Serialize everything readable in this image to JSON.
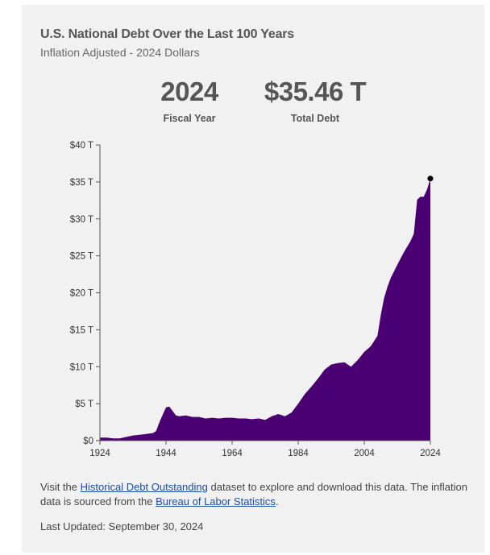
{
  "header": {
    "title": "U.S. National Debt Over the Last 100 Years",
    "subtitle": "Inflation Adjusted - 2024 Dollars"
  },
  "kpis": {
    "year_value": "2024",
    "year_label": "Fiscal Year",
    "debt_value": "$35.46 T",
    "debt_label": "Total Debt"
  },
  "footer": {
    "note_prefix": "Visit the ",
    "link_dataset": "Historical Debt Outstanding",
    "note_middle": " dataset to explore and download this data. The inflation data is sourced from the ",
    "link_bls": "Bureau of Labor Statistics",
    "note_suffix": ".",
    "updated": "Last Updated: September 30, 2024"
  },
  "colors": {
    "area": "#4a0072",
    "marker": "#000000",
    "axis": "#555555"
  },
  "chart_data": {
    "type": "area",
    "title": "U.S. National Debt Over the Last 100 Years",
    "subtitle": "Inflation Adjusted - 2024 Dollars",
    "xlabel": "",
    "ylabel": "",
    "xlim": [
      1924,
      2024
    ],
    "ylim": [
      0,
      40
    ],
    "x_ticks": [
      "1924",
      "1944",
      "1964",
      "1984",
      "2004",
      "2024"
    ],
    "y_ticks": [
      "$0",
      "$5 T",
      "$10 T",
      "$15 T",
      "$20 T",
      "$25 T",
      "$30 T",
      "$35 T",
      "$40 T"
    ],
    "units": "trillions of 2024 dollars",
    "grid": false,
    "highlight": {
      "x": 2024,
      "y": 35.46
    },
    "x": [
      1924,
      1926,
      1928,
      1930,
      1932,
      1934,
      1936,
      1938,
      1940,
      1941,
      1942,
      1943,
      1944,
      1945,
      1946,
      1947,
      1948,
      1950,
      1952,
      1954,
      1956,
      1958,
      1960,
      1962,
      1964,
      1966,
      1968,
      1970,
      1972,
      1974,
      1976,
      1978,
      1980,
      1982,
      1984,
      1986,
      1988,
      1990,
      1992,
      1994,
      1996,
      1998,
      2000,
      2002,
      2004,
      2006,
      2008,
      2009,
      2010,
      2011,
      2012,
      2014,
      2016,
      2018,
      2019,
      2020,
      2021,
      2022,
      2023,
      2024
    ],
    "values": [
      0.4,
      0.4,
      0.3,
      0.3,
      0.5,
      0.7,
      0.8,
      0.9,
      1.0,
      1.3,
      2.5,
      3.5,
      4.5,
      4.6,
      4.0,
      3.4,
      3.3,
      3.4,
      3.2,
      3.2,
      3.0,
      3.1,
      3.0,
      3.1,
      3.1,
      3.0,
      3.0,
      2.9,
      3.0,
      2.8,
      3.3,
      3.6,
      3.3,
      3.8,
      5.0,
      6.3,
      7.3,
      8.4,
      9.6,
      10.3,
      10.5,
      10.6,
      10.0,
      10.9,
      12.0,
      12.8,
      14.2,
      17.0,
      19.3,
      20.8,
      22.0,
      23.8,
      25.5,
      27.0,
      28.0,
      32.6,
      33.0,
      33.0,
      34.0,
      35.46
    ]
  }
}
